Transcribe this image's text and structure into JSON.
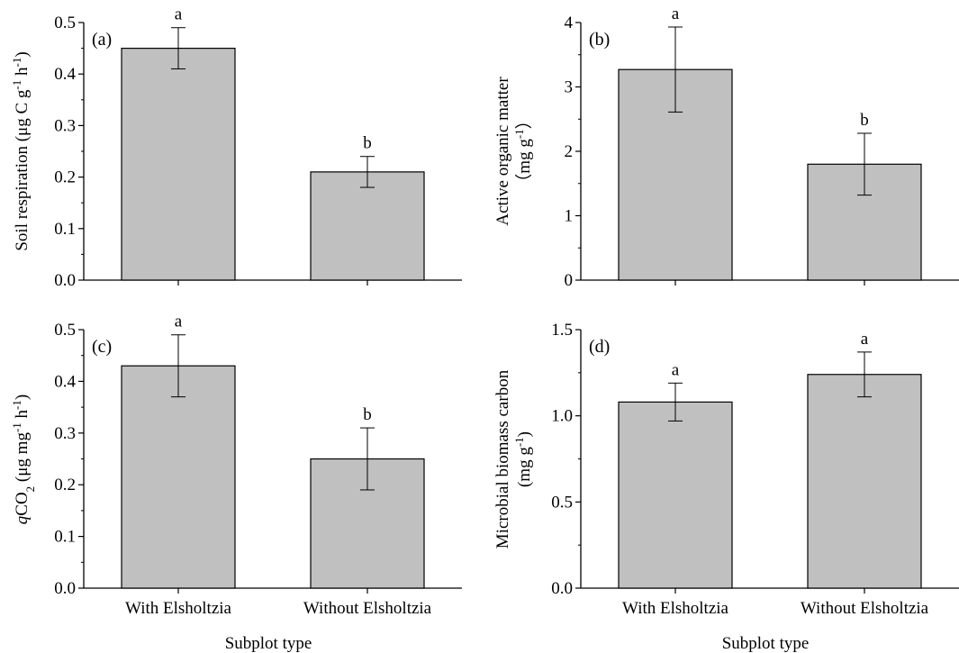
{
  "xlabel": "Subplot type",
  "chart_data": [
    {
      "type": "bar",
      "panel": "(a)",
      "categories": [
        "With Elsholtzia",
        "Without Elsholtzia"
      ],
      "values": [
        0.45,
        0.21
      ],
      "errors": [
        0.04,
        0.03
      ],
      "significance": [
        "a",
        "b"
      ],
      "ylabel": "Soil respiration (μg C g⁻¹ h⁻¹)",
      "ylim": [
        0,
        0.5
      ],
      "yticks": [
        "0.0",
        "0.1",
        "0.2",
        "0.3",
        "0.4",
        "0.5"
      ],
      "bar_color": "#c0c0c0"
    },
    {
      "type": "bar",
      "panel": "(b)",
      "categories": [
        "With Elsholtzia",
        "Without Elsholtzia"
      ],
      "values": [
        3.27,
        1.8
      ],
      "errors": [
        0.66,
        0.48
      ],
      "significance": [
        "a",
        "b"
      ],
      "ylabel": "Active organic matter (mg g⁻¹)",
      "ylim": [
        0,
        4
      ],
      "yticks": [
        "0",
        "1",
        "2",
        "3",
        "4"
      ],
      "bar_color": "#c0c0c0"
    },
    {
      "type": "bar",
      "panel": "(c)",
      "categories": [
        "With Elsholtzia",
        "Without Elsholtzia"
      ],
      "values": [
        0.43,
        0.25
      ],
      "errors": [
        0.06,
        0.06
      ],
      "significance": [
        "a",
        "b"
      ],
      "ylabel": "qCO₂ (μg mg⁻¹ h⁻¹)",
      "ylim": [
        0,
        0.5
      ],
      "yticks": [
        "0.0",
        "0.1",
        "0.2",
        "0.3",
        "0.4",
        "0.5"
      ],
      "bar_color": "#c0c0c0"
    },
    {
      "type": "bar",
      "panel": "(d)",
      "categories": [
        "With Elsholtzia",
        "Without Elsholtzia"
      ],
      "values": [
        1.08,
        1.24
      ],
      "errors": [
        0.11,
        0.13
      ],
      "significance": [
        "a",
        "a"
      ],
      "ylabel": "Microbial biomass carbon (mg g⁻¹)",
      "ylim": [
        0,
        1.5
      ],
      "yticks": [
        "0.0",
        "0.5",
        "1.0",
        "1.5"
      ],
      "bar_color": "#c0c0c0"
    }
  ]
}
